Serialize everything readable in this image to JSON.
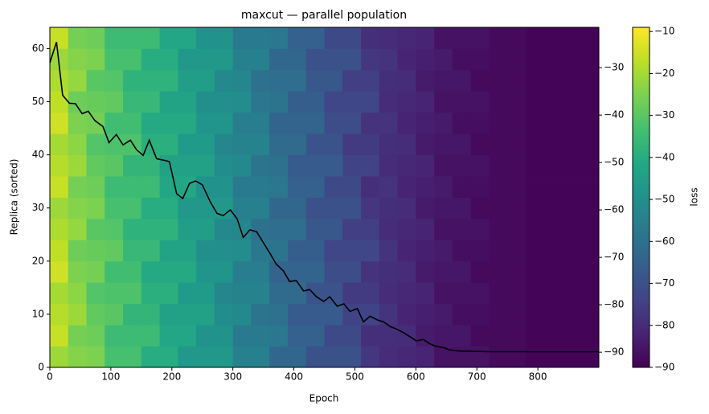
{
  "chart_data": {
    "type": "heatmap",
    "title": "maxcut — parallel population",
    "xlabel": "Epoch",
    "ylabel": "Replica (sorted)",
    "colorbar_label": "loss",
    "colormap": "viridis",
    "xlim": [
      0,
      900
    ],
    "ylim": [
      0,
      64
    ],
    "y2lim": [
      -93.2,
      -21.5
    ],
    "zlim": [
      -90,
      -9
    ],
    "xticks": [
      0,
      100,
      200,
      300,
      400,
      500,
      600,
      700,
      800
    ],
    "yticks": [
      0,
      10,
      20,
      30,
      40,
      50,
      60
    ],
    "y2ticks": [
      {
        "value": -90,
        "label": "−90"
      },
      {
        "value": -80,
        "label": "−80"
      },
      {
        "value": -70,
        "label": "−70"
      },
      {
        "value": -60,
        "label": "−60"
      },
      {
        "value": -50,
        "label": "−50"
      },
      {
        "value": -40,
        "label": "−40"
      },
      {
        "value": -30,
        "label": "−30"
      }
    ],
    "zticks": [
      {
        "value": -90,
        "label": "−90"
      },
      {
        "value": -80,
        "label": "−80"
      },
      {
        "value": -70,
        "label": "−70"
      },
      {
        "value": -60,
        "label": "−60"
      },
      {
        "value": -50,
        "label": "−50"
      },
      {
        "value": -40,
        "label": "−40"
      },
      {
        "value": -30,
        "label": "−30"
      },
      {
        "value": -20,
        "label": "−20"
      },
      {
        "value": -10,
        "label": "−10"
      }
    ],
    "xbins": [
      0,
      30,
      60,
      90,
      120,
      150,
      180,
      210,
      240,
      270,
      300,
      330,
      360,
      390,
      420,
      450,
      480,
      510,
      540,
      570,
      600,
      630,
      660,
      690,
      720,
      750,
      780,
      810,
      840,
      870,
      900
    ],
    "ybins": [
      0,
      4,
      8,
      12,
      16,
      20,
      24,
      28,
      32,
      36,
      40,
      44,
      48,
      52,
      56,
      60,
      64
    ],
    "z": [
      [
        -21,
        -24,
        -25,
        -33,
        -33,
        -40,
        -40,
        -47,
        -47,
        -47,
        -55,
        -55,
        -63,
        -63,
        -70,
        -70,
        -70,
        -77,
        -80,
        -81,
        -82,
        -86,
        -86,
        -86,
        -88,
        -88,
        -89,
        -89,
        -89,
        -89
      ],
      [
        -16,
        -26,
        -27,
        -35,
        -35,
        -35,
        -42,
        -42,
        -49,
        -49,
        -57,
        -57,
        -58,
        -65,
        -65,
        -72,
        -72,
        -79,
        -79,
        -80,
        -84,
        -85,
        -85,
        -88,
        -88,
        -88,
        -89,
        -89,
        -89,
        -89
      ],
      [
        -18,
        -21,
        -29,
        -30,
        -37,
        -37,
        -44,
        -44,
        -44,
        -51,
        -52,
        -59,
        -60,
        -67,
        -67,
        -67,
        -74,
        -74,
        -78,
        -82,
        -83,
        -84,
        -87,
        -87,
        -88,
        -88,
        -89,
        -89,
        -89,
        -89
      ],
      [
        -20,
        -23,
        -31,
        -32,
        -32,
        -39,
        -39,
        -46,
        -46,
        -53,
        -54,
        -54,
        -62,
        -62,
        -69,
        -69,
        -76,
        -76,
        -80,
        -81,
        -82,
        -86,
        -86,
        -86,
        -88,
        -88,
        -89,
        -89,
        -89,
        -89
      ],
      [
        -15,
        -25,
        -26,
        -34,
        -34,
        -41,
        -41,
        -41,
        -48,
        -48,
        -56,
        -56,
        -64,
        -64,
        -64,
        -71,
        -71,
        -78,
        -79,
        -80,
        -84,
        -85,
        -85,
        -88,
        -88,
        -88,
        -89,
        -89,
        -89,
        -89
      ],
      [
        -17,
        -27,
        -28,
        -29,
        -36,
        -36,
        -43,
        -43,
        -50,
        -50,
        -51,
        -58,
        -59,
        -66,
        -66,
        -73,
        -73,
        -73,
        -78,
        -82,
        -83,
        -84,
        -87,
        -87,
        -88,
        -88,
        -89,
        -89,
        -89,
        -89
      ],
      [
        -19,
        -22,
        -30,
        -31,
        -38,
        -38,
        -38,
        -45,
        -45,
        -52,
        -53,
        -60,
        -61,
        -61,
        -68,
        -68,
        -75,
        -75,
        -80,
        -81,
        -82,
        -86,
        -86,
        -86,
        -88,
        -88,
        -89,
        -89,
        -89,
        -89
      ],
      [
        -21,
        -24,
        -25,
        -33,
        -33,
        -40,
        -40,
        -47,
        -47,
        -47,
        -55,
        -55,
        -63,
        -63,
        -70,
        -70,
        -70,
        -77,
        -79,
        -80,
        -84,
        -85,
        -85,
        -88,
        -88,
        -88,
        -89,
        -89,
        -89,
        -89
      ],
      [
        -16,
        -26,
        -27,
        -35,
        -35,
        -35,
        -42,
        -42,
        -49,
        -49,
        -57,
        -57,
        -58,
        -65,
        -65,
        -72,
        -72,
        -79,
        -78,
        -82,
        -83,
        -84,
        -87,
        -87,
        -88,
        -88,
        -89,
        -89,
        -89,
        -89
      ],
      [
        -18,
        -21,
        -29,
        -30,
        -37,
        -37,
        -44,
        -44,
        -44,
        -51,
        -52,
        -59,
        -60,
        -67,
        -67,
        -67,
        -74,
        -74,
        -80,
        -81,
        -82,
        -86,
        -86,
        -86,
        -88,
        -88,
        -89,
        -89,
        -89,
        -89
      ],
      [
        -20,
        -23,
        -31,
        -32,
        -32,
        -39,
        -39,
        -46,
        -46,
        -53,
        -54,
        -54,
        -62,
        -62,
        -69,
        -69,
        -76,
        -76,
        -79,
        -80,
        -84,
        -85,
        -85,
        -88,
        -88,
        -88,
        -89,
        -89,
        -89,
        -89
      ],
      [
        -15,
        -25,
        -26,
        -34,
        -34,
        -41,
        -41,
        -41,
        -48,
        -48,
        -56,
        -56,
        -64,
        -64,
        -64,
        -71,
        -71,
        -78,
        -78,
        -82,
        -83,
        -84,
        -87,
        -87,
        -88,
        -88,
        -89,
        -89,
        -89,
        -89
      ],
      [
        -17,
        -27,
        -28,
        -29,
        -36,
        -36,
        -43,
        -43,
        -50,
        -50,
        -51,
        -58,
        -59,
        -66,
        -66,
        -73,
        -73,
        -73,
        -80,
        -81,
        -82,
        -86,
        -86,
        -86,
        -88,
        -88,
        -89,
        -89,
        -89,
        -89
      ],
      [
        -19,
        -22,
        -30,
        -31,
        -38,
        -38,
        -38,
        -45,
        -45,
        -52,
        -53,
        -60,
        -61,
        -61,
        -68,
        -68,
        -75,
        -75,
        -79,
        -80,
        -84,
        -85,
        -85,
        -88,
        -88,
        -88,
        -89,
        -89,
        -89,
        -89
      ],
      [
        -21,
        -24,
        -25,
        -33,
        -33,
        -40,
        -40,
        -47,
        -47,
        -47,
        -55,
        -55,
        -63,
        -63,
        -70,
        -70,
        -70,
        -77,
        -78,
        -82,
        -83,
        -84,
        -87,
        -87,
        -88,
        -88,
        -89,
        -89,
        -89,
        -89
      ],
      [
        -16,
        -26,
        -27,
        -35,
        -35,
        -35,
        -42,
        -42,
        -49,
        -49,
        -57,
        -57,
        -58,
        -65,
        -65,
        -72,
        -72,
        -79,
        -80,
        -81,
        -82,
        -86,
        -86,
        -86,
        -88,
        -88,
        -89,
        -89,
        -89,
        -89
      ]
    ],
    "series": [
      {
        "type": "line",
        "axis": "y2",
        "color": "#000000",
        "x": [
          0,
          11,
          21,
          32,
          42,
          53,
          63,
          74,
          87,
          97,
          109,
          120,
          132,
          142,
          153,
          163,
          175,
          186,
          196,
          208,
          218,
          229,
          239,
          250,
          263,
          274,
          284,
          296,
          307,
          317,
          328,
          339,
          350,
          361,
          371,
          383,
          393,
          404,
          416,
          426,
          437,
          449,
          459,
          471,
          482,
          492,
          504,
          514,
          525,
          537,
          547,
          558,
          568,
          580,
          591,
          601,
          612,
          624,
          634,
          645,
          655,
          668,
          679,
          689,
          720,
          760,
          800,
          850,
          899
        ],
        "values": [
          -29.0,
          -24.6,
          -35.8,
          -37.5,
          -37.6,
          -39.7,
          -39.2,
          -41.2,
          -42.4,
          -45.8,
          -44.1,
          -46.3,
          -45.3,
          -47.3,
          -48.5,
          -45.3,
          -49.2,
          -49.5,
          -49.8,
          -56.6,
          -57.6,
          -54.4,
          -53.9,
          -54.7,
          -58.3,
          -60.7,
          -61.2,
          -60.0,
          -61.9,
          -65.8,
          -64.2,
          -64.6,
          -66.9,
          -69.2,
          -71.4,
          -72.9,
          -75.1,
          -74.9,
          -77.1,
          -76.8,
          -78.3,
          -79.3,
          -78.3,
          -80.3,
          -79.8,
          -81.4,
          -80.8,
          -83.6,
          -82.4,
          -83.2,
          -83.6,
          -84.6,
          -85.1,
          -85.9,
          -86.8,
          -87.6,
          -87.3,
          -88.3,
          -88.8,
          -89.0,
          -89.5,
          -89.7,
          -89.8,
          -89.8,
          -89.9,
          -89.9,
          -89.9,
          -89.9,
          -89.9
        ]
      }
    ]
  }
}
